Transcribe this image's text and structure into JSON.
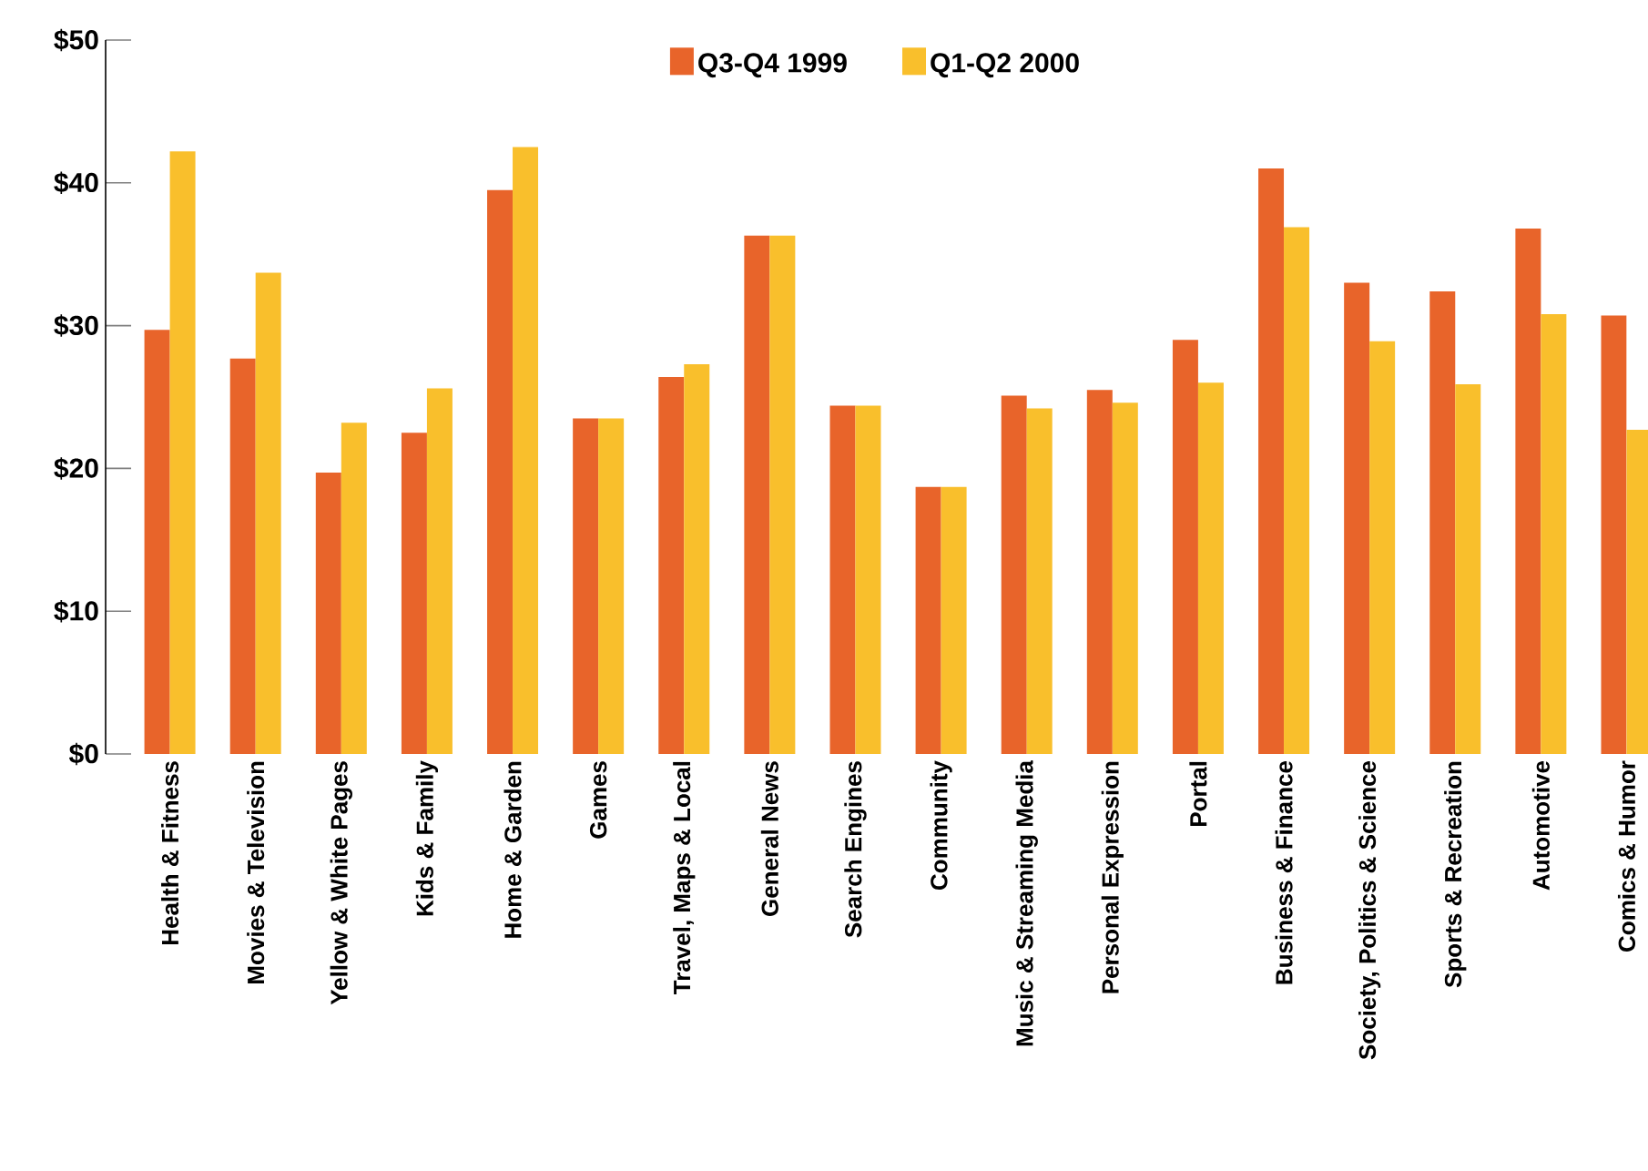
{
  "chart_data": {
    "type": "bar",
    "categories": [
      "Health & Fitness",
      "Movies & Television",
      "Yellow & White Pages",
      "Kids & Family",
      "Home & Garden",
      "Games",
      "Travel, Maps & Local",
      "General News",
      "Search Engines",
      "Community",
      "Music & Streaming Media",
      "Personal Expression",
      "Portal",
      "Business & Finance",
      "Society, Politics & Science",
      "Sports & Recreation",
      "Automotive",
      "Comics & Humor"
    ],
    "series": [
      {
        "name": "Q3-Q4 1999",
        "color": "#e8642a",
        "values": [
          29.7,
          27.7,
          19.7,
          22.5,
          39.5,
          23.5,
          26.4,
          36.3,
          24.4,
          18.7,
          25.1,
          25.5,
          29.0,
          41.0,
          33.0,
          32.4,
          36.8,
          30.7
        ]
      },
      {
        "name": "Q1-Q2 2000",
        "color": "#f9bf2c",
        "values": [
          42.2,
          33.7,
          23.2,
          25.6,
          42.5,
          23.5,
          27.3,
          36.3,
          24.4,
          18.7,
          24.2,
          24.6,
          26.0,
          36.9,
          28.9,
          25.9,
          30.8,
          22.7
        ]
      }
    ],
    "ylim": [
      0,
      50
    ],
    "yticks": [
      {
        "value": 0,
        "label": "$0"
      },
      {
        "value": 10,
        "label": "$10"
      },
      {
        "value": 20,
        "label": "$20"
      },
      {
        "value": 30,
        "label": "$30"
      },
      {
        "value": 40,
        "label": "$40"
      },
      {
        "value": 50,
        "label": "$50"
      }
    ],
    "legend": "top"
  }
}
